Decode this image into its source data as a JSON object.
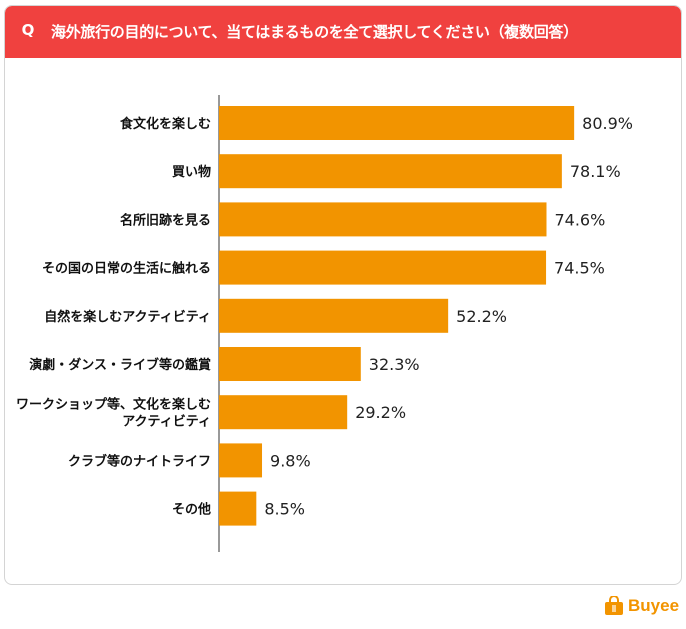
{
  "header": {
    "q_label": "Q",
    "title": "海外旅行の目的について、当てはまるものを全て選択してください（複数回答）"
  },
  "chart_data": {
    "type": "bar",
    "orientation": "horizontal",
    "categories": [
      [
        "食文化を楽しむ"
      ],
      [
        "買い物"
      ],
      [
        "名所旧跡を見る"
      ],
      [
        "その国の日常の生活に触れる"
      ],
      [
        "自然を楽しむアクティビティ"
      ],
      [
        "演劇・ダンス・ライブ等の鑑賞"
      ],
      [
        "ワークショップ等、文化を楽しむ",
        "アクティビティ"
      ],
      [
        "クラブ等のナイトライフ"
      ],
      [
        "その他"
      ]
    ],
    "values": [
      80.9,
      78.1,
      74.6,
      74.5,
      52.2,
      32.3,
      29.2,
      9.8,
      8.5
    ],
    "value_labels": [
      "80.9%",
      "78.1%",
      "74.6%",
      "74.5%",
      "52.2%",
      "32.3%",
      "29.2%",
      "9.8%",
      "8.5%"
    ],
    "bar_color": "#f29400",
    "xlim": [
      0,
      100
    ],
    "grid": false,
    "legend": false
  },
  "brand": {
    "name": "Buyee",
    "color": "#f29400",
    "header_color": "#f0413f"
  }
}
